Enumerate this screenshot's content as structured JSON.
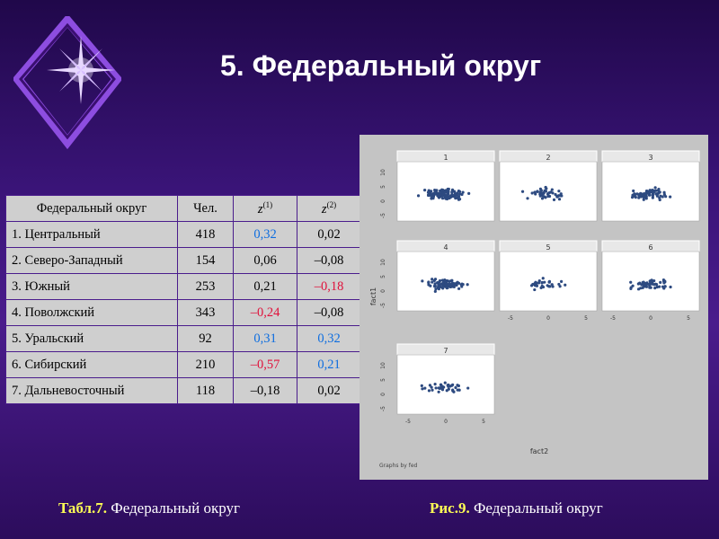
{
  "slide": {
    "title": "5. Федеральный округ"
  },
  "table": {
    "headers": {
      "col1": "Федеральный округ",
      "col2": "Чел.",
      "col3_base": "z",
      "col3_sup": "(1)",
      "col4_base": "z",
      "col4_sup": "(2)"
    },
    "rows": [
      {
        "name": "1. Центральный",
        "n": "418",
        "z1": "0,32",
        "z1_style": "pos",
        "z2": "0,02",
        "z2_style": ""
      },
      {
        "name": "2. Северо-Западный",
        "n": "154",
        "z1": "0,06",
        "z1_style": "",
        "z2": "–0,08",
        "z2_style": ""
      },
      {
        "name": "3. Южный",
        "n": "253",
        "z1": "0,21",
        "z1_style": "",
        "z2": "–0,18",
        "z2_style": "neg"
      },
      {
        "name": "4. Поволжский",
        "n": "343",
        "z1": "–0,24",
        "z1_style": "neg",
        "z2": "–0,08",
        "z2_style": ""
      },
      {
        "name": "5. Уральский",
        "n": "92",
        "z1": "0,31",
        "z1_style": "pos",
        "z2": "0,32",
        "z2_style": "pos"
      },
      {
        "name": "6. Сибирский",
        "n": "210",
        "z1": "–0,57",
        "z1_style": "neg",
        "z2": "0,21",
        "z2_style": "pos"
      },
      {
        "name": "7. Дальневосточный",
        "n": "118",
        "z1": "–0,18",
        "z1_style": "",
        "z2": "0,02",
        "z2_style": ""
      }
    ]
  },
  "figure": {
    "panels": [
      "1",
      "2",
      "3",
      "4",
      "5",
      "6",
      "7"
    ],
    "y_label": "fact1",
    "x_label": "fact2",
    "y_ticks": [
      "-5",
      "0",
      "5",
      "10"
    ],
    "x_ticks": [
      "-5",
      "0",
      "5"
    ],
    "graphs_note": "Graphs by fed"
  },
  "captions": {
    "table_label": "Табл.7.",
    "table_text": " Федеральный округ",
    "figure_label": "Рис.9.",
    "figure_text": " Федеральный округ"
  },
  "colors": {
    "background": "#3a1478",
    "title": "#ffffff",
    "positive": "#0d6de0",
    "negative": "#e0103a",
    "caption_label": "#ffff55",
    "point": "#2d4a80"
  }
}
